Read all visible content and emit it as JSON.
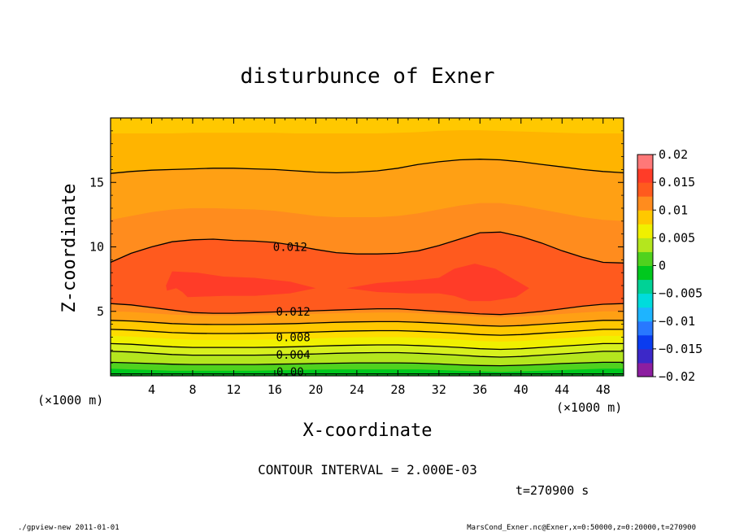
{
  "chart_data": {
    "type": "heatmap",
    "title": "disturbunce of Exner",
    "xlabel": "X-coordinate",
    "ylabel": "Z-coordinate",
    "x_unit_left": "(×1000 m)",
    "x_unit_right": "(×1000 m)",
    "xlim": [
      0,
      50
    ],
    "ylim": [
      0,
      20
    ],
    "x_ticks": [
      4,
      8,
      12,
      16,
      20,
      24,
      28,
      32,
      36,
      40,
      44,
      48
    ],
    "y_ticks": [
      5,
      10,
      15
    ],
    "colorbar": {
      "min": -0.02,
      "max": 0.02,
      "step": 0.0025,
      "tick_labels": [
        "0.02",
        "0.015",
        "0.01",
        "0.005",
        "0",
        "−0.005",
        "−0.01",
        "−0.015",
        "−0.02"
      ],
      "colors": [
        "#8c1ea0",
        "#3c28c8",
        "#0a3cf0",
        "#2878ff",
        "#1eb4ff",
        "#00dcdc",
        "#00d296",
        "#00c81e",
        "#50d21e",
        "#b4e61e",
        "#f0f000",
        "#ffc800",
        "#ff8c1e",
        "#ff5a1e",
        "#ff3c28",
        "#ff7878"
      ]
    },
    "bands": [
      {
        "level": 0.0,
        "color": "#00c81e",
        "y": [
          0.15,
          0.15,
          0.15,
          0.15,
          0.15,
          0.15,
          0.15,
          0.15,
          0.15,
          0.15,
          0.15,
          0.15,
          0.15,
          0.15,
          0.15,
          0.15,
          0.15,
          0.15,
          0.15,
          0.15,
          0.15,
          0.15,
          0.15,
          0.15,
          0.15,
          0.15
        ]
      },
      {
        "level": 0.001,
        "color": "#50d21e",
        "y": [
          0.55,
          0.5,
          0.45,
          0.4,
          0.4,
          0.4,
          0.4,
          0.4,
          0.42,
          0.45,
          0.48,
          0.5,
          0.5,
          0.5,
          0.5,
          0.5,
          0.45,
          0.4,
          0.35,
          0.3,
          0.35,
          0.4,
          0.45,
          0.5,
          0.55,
          0.55
        ]
      },
      {
        "level": 0.002,
        "color": "#b4e61e",
        "y": [
          1.05,
          1.0,
          0.95,
          0.9,
          0.88,
          0.88,
          0.88,
          0.88,
          0.9,
          0.92,
          0.95,
          0.98,
          1.0,
          1.0,
          1.0,
          0.98,
          0.92,
          0.85,
          0.8,
          0.78,
          0.82,
          0.88,
          0.95,
          1.0,
          1.05,
          1.05
        ]
      },
      {
        "level": 0.004,
        "color": "#d7f01e",
        "y": [
          1.9,
          1.85,
          1.75,
          1.65,
          1.6,
          1.6,
          1.6,
          1.6,
          1.62,
          1.65,
          1.7,
          1.75,
          1.78,
          1.8,
          1.8,
          1.75,
          1.68,
          1.6,
          1.5,
          1.45,
          1.5,
          1.6,
          1.7,
          1.8,
          1.9,
          1.9
        ]
      },
      {
        "level": 0.006,
        "color": "#f0f000",
        "y": [
          2.5,
          2.45,
          2.35,
          2.25,
          2.2,
          2.2,
          2.2,
          2.2,
          2.22,
          2.25,
          2.3,
          2.35,
          2.38,
          2.4,
          2.4,
          2.35,
          2.28,
          2.2,
          2.1,
          2.05,
          2.1,
          2.2,
          2.3,
          2.4,
          2.5,
          2.5
        ]
      },
      {
        "level": 0.007,
        "color": "#ffdc00",
        "y": [
          3.1,
          3.05,
          2.95,
          2.85,
          2.8,
          2.78,
          2.78,
          2.8,
          2.82,
          2.85,
          2.9,
          2.95,
          2.98,
          3.0,
          3.0,
          2.95,
          2.88,
          2.8,
          2.7,
          2.65,
          2.7,
          2.8,
          2.9,
          3.0,
          3.1,
          3.1
        ]
      },
      {
        "level": 0.008,
        "color": "#ffc800",
        "y": [
          3.6,
          3.55,
          3.45,
          3.35,
          3.3,
          3.28,
          3.28,
          3.3,
          3.32,
          3.35,
          3.4,
          3.45,
          3.48,
          3.5,
          3.5,
          3.45,
          3.38,
          3.3,
          3.2,
          3.15,
          3.2,
          3.3,
          3.4,
          3.5,
          3.6,
          3.6
        ]
      },
      {
        "level": 0.009,
        "color": "#ffa014",
        "y": [
          4.3,
          4.25,
          4.15,
          4.05,
          4.0,
          3.98,
          3.98,
          4.0,
          4.02,
          4.05,
          4.1,
          4.15,
          4.18,
          4.2,
          4.2,
          4.15,
          4.08,
          4.0,
          3.9,
          3.85,
          3.9,
          4.0,
          4.1,
          4.2,
          4.3,
          4.3
        ]
      },
      {
        "level": 0.011,
        "color": "#ff8c1e",
        "y": [
          5.0,
          4.95,
          4.85,
          4.75,
          4.7,
          4.68,
          4.68,
          4.7,
          4.72,
          4.75,
          4.8,
          4.85,
          4.88,
          4.9,
          4.9,
          4.85,
          4.78,
          4.7,
          4.6,
          4.55,
          4.6,
          4.7,
          4.8,
          4.9,
          5.0,
          5.0
        ]
      },
      {
        "level": 0.012,
        "color": "#ff5a1e",
        "y": [
          5.6,
          5.5,
          5.3,
          5.1,
          4.9,
          4.85,
          4.85,
          4.9,
          4.95,
          5.0,
          5.05,
          5.1,
          5.15,
          5.2,
          5.2,
          5.1,
          5.0,
          4.9,
          4.8,
          4.75,
          4.85,
          5.0,
          5.2,
          5.4,
          5.55,
          5.6
        ]
      },
      {
        "level": 0.012,
        "color": "#ff8c1e",
        "y": [
          8.8,
          9.5,
          10.0,
          10.4,
          10.55,
          10.6,
          10.5,
          10.45,
          10.35,
          10.1,
          9.8,
          9.55,
          9.45,
          9.45,
          9.5,
          9.7,
          10.1,
          10.6,
          11.1,
          11.15,
          10.8,
          10.3,
          9.7,
          9.2,
          8.8,
          8.75
        ]
      },
      {
        "level": 0.011,
        "color": "#ffa014",
        "y": [
          12.1,
          12.4,
          12.7,
          12.9,
          13.0,
          13.0,
          12.95,
          12.9,
          12.8,
          12.6,
          12.4,
          12.3,
          12.3,
          12.3,
          12.4,
          12.6,
          12.9,
          13.2,
          13.4,
          13.4,
          13.2,
          12.9,
          12.6,
          12.3,
          12.1,
          12.0
        ]
      },
      {
        "level": 0.01,
        "color": "#ffb400",
        "y": [
          15.7,
          15.85,
          15.95,
          16.0,
          16.05,
          16.1,
          16.1,
          16.05,
          16.0,
          15.9,
          15.8,
          15.75,
          15.8,
          15.9,
          16.1,
          16.4,
          16.6,
          16.75,
          16.8,
          16.75,
          16.6,
          16.4,
          16.2,
          16.0,
          15.85,
          15.75
        ]
      },
      {
        "level": 0.009,
        "color": "#ffc800",
        "y": [
          18.8,
          18.8,
          18.8,
          18.8,
          18.85,
          18.85,
          18.85,
          18.85,
          18.85,
          18.8,
          18.8,
          18.8,
          18.8,
          18.8,
          18.85,
          18.9,
          19.0,
          19.05,
          19.05,
          19.0,
          18.95,
          18.9,
          18.85,
          18.8,
          18.8,
          18.8
        ]
      },
      {
        "level": 0.008,
        "color": "#ffdc00",
        "y": [
          20,
          20,
          20,
          20,
          20,
          20,
          20,
          20,
          20,
          20,
          20,
          20,
          20,
          20,
          20,
          20,
          20,
          20,
          20,
          20,
          20,
          20,
          20,
          20,
          20,
          20
        ]
      }
    ],
    "contours": [
      {
        "level": 0.0,
        "y": [
          0.15,
          0.15,
          0.15,
          0.15,
          0.15,
          0.15,
          0.15,
          0.15,
          0.15,
          0.15,
          0.15,
          0.15,
          0.15,
          0.15,
          0.15,
          0.15,
          0.15,
          0.15,
          0.15,
          0.15,
          0.15,
          0.15,
          0.15,
          0.15,
          0.15,
          0.15
        ]
      },
      {
        "level": 0.002,
        "y": [
          1.05,
          1.0,
          0.95,
          0.9,
          0.88,
          0.88,
          0.88,
          0.88,
          0.9,
          0.92,
          0.95,
          0.98,
          1.0,
          1.0,
          1.0,
          0.98,
          0.92,
          0.85,
          0.8,
          0.78,
          0.82,
          0.88,
          0.95,
          1.0,
          1.05,
          1.05
        ]
      },
      {
        "level": 0.004,
        "y": [
          1.9,
          1.85,
          1.75,
          1.65,
          1.6,
          1.6,
          1.6,
          1.6,
          1.62,
          1.65,
          1.7,
          1.75,
          1.78,
          1.8,
          1.8,
          1.75,
          1.68,
          1.6,
          1.5,
          1.45,
          1.5,
          1.6,
          1.7,
          1.8,
          1.9,
          1.9
        ]
      },
      {
        "level": 0.006,
        "y": [
          2.5,
          2.45,
          2.35,
          2.25,
          2.2,
          2.2,
          2.2,
          2.2,
          2.22,
          2.25,
          2.3,
          2.35,
          2.38,
          2.4,
          2.4,
          2.35,
          2.28,
          2.2,
          2.1,
          2.05,
          2.1,
          2.2,
          2.3,
          2.4,
          2.5,
          2.5
        ]
      },
      {
        "level": 0.008,
        "y": [
          3.6,
          3.55,
          3.45,
          3.35,
          3.3,
          3.28,
          3.28,
          3.3,
          3.32,
          3.35,
          3.4,
          3.45,
          3.48,
          3.5,
          3.5,
          3.45,
          3.38,
          3.3,
          3.2,
          3.15,
          3.2,
          3.3,
          3.4,
          3.5,
          3.6,
          3.6
        ]
      },
      {
        "level": 0.01,
        "y": [
          4.3,
          4.25,
          4.15,
          4.05,
          4.0,
          3.98,
          3.98,
          4.0,
          4.02,
          4.05,
          4.1,
          4.15,
          4.18,
          4.2,
          4.2,
          4.15,
          4.08,
          4.0,
          3.9,
          3.85,
          3.9,
          4.0,
          4.1,
          4.2,
          4.3,
          4.3
        ]
      },
      {
        "level": 0.012,
        "y": [
          5.6,
          5.5,
          5.3,
          5.1,
          4.9,
          4.85,
          4.85,
          4.9,
          4.95,
          5.0,
          5.05,
          5.1,
          5.15,
          5.2,
          5.2,
          5.1,
          5.0,
          4.9,
          4.8,
          4.75,
          4.85,
          5.0,
          5.2,
          5.4,
          5.55,
          5.6
        ]
      },
      {
        "level": 0.012,
        "y": [
          8.8,
          9.5,
          10.0,
          10.4,
          10.55,
          10.6,
          10.5,
          10.45,
          10.35,
          10.1,
          9.8,
          9.55,
          9.45,
          9.45,
          9.5,
          9.7,
          10.1,
          10.6,
          11.1,
          11.15,
          10.8,
          10.3,
          9.7,
          9.2,
          8.8,
          8.75
        ]
      },
      {
        "level": 0.01,
        "y": [
          15.7,
          15.85,
          15.95,
          16.0,
          16.05,
          16.1,
          16.1,
          16.05,
          16.0,
          15.9,
          15.8,
          15.75,
          15.8,
          15.9,
          16.1,
          16.4,
          16.6,
          16.75,
          16.8,
          16.75,
          16.6,
          16.4,
          16.2,
          16.0,
          15.85,
          15.75
        ]
      }
    ],
    "contour_labels": [
      {
        "text": "0.012",
        "x": 17.5,
        "y": 10.0
      },
      {
        "text": "0.012",
        "x": 17.8,
        "y": 5.0
      },
      {
        "text": "0.008",
        "x": 17.8,
        "y": 3.0
      },
      {
        "text": "0.004",
        "x": 17.8,
        "y": 1.65
      },
      {
        "text": "0.00",
        "x": 17.5,
        "y": 0.3
      }
    ],
    "core_regions": [
      {
        "color": "#ff3c28",
        "points": [
          [
            5.4,
            7.0
          ],
          [
            6.0,
            8.1
          ],
          [
            8.5,
            8.0
          ],
          [
            11.0,
            7.7
          ],
          [
            14.0,
            7.6
          ],
          [
            17.5,
            7.3
          ],
          [
            20.0,
            6.8
          ],
          [
            17.5,
            6.4
          ],
          [
            14.0,
            6.2
          ],
          [
            11.0,
            6.2
          ],
          [
            7.5,
            6.1
          ],
          [
            7.0,
            6.5
          ],
          [
            6.4,
            6.8
          ],
          [
            5.5,
            6.6
          ]
        ]
      },
      {
        "color": "#ff3c28",
        "points": [
          [
            23.0,
            6.8
          ],
          [
            26.0,
            7.2
          ],
          [
            29.5,
            7.4
          ],
          [
            32.0,
            7.6
          ],
          [
            33.5,
            8.3
          ],
          [
            35.5,
            8.7
          ],
          [
            37.5,
            8.3
          ],
          [
            39.5,
            7.4
          ],
          [
            40.8,
            6.8
          ],
          [
            39.5,
            6.1
          ],
          [
            37.0,
            5.8
          ],
          [
            35.0,
            5.8
          ],
          [
            33.5,
            6.2
          ],
          [
            32.0,
            6.4
          ],
          [
            29.0,
            6.4
          ],
          [
            26.0,
            6.5
          ]
        ]
      }
    ],
    "contour_interval_text": "CONTOUR INTERVAL = 2.000E-03",
    "time_text": "t=270900 s",
    "footer_left": "./gpview-new   2011-01-01",
    "footer_right": "MarsCond_Exner.nc@Exner,x=0:50000,z=0:20000,t=270900"
  }
}
